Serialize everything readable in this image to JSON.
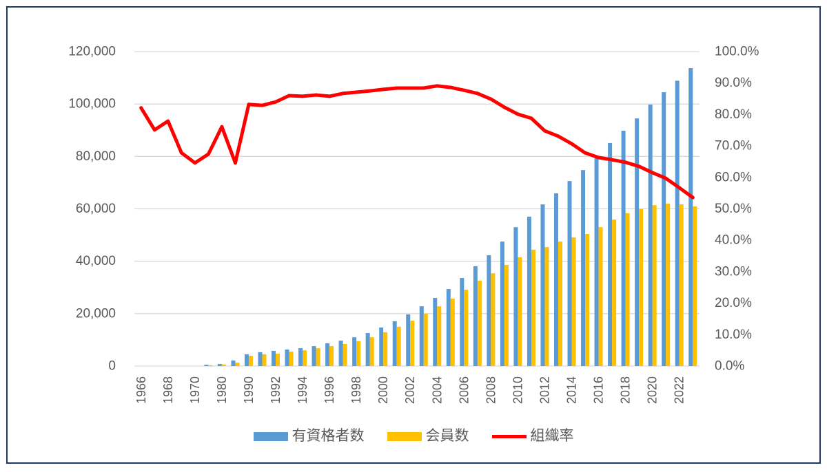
{
  "chart_data": {
    "type": "bar",
    "categories": [
      "1966",
      "",
      "1968",
      "",
      "1970",
      "",
      "1980",
      "",
      "1990",
      "",
      "1992",
      "",
      "1994",
      "",
      "1996",
      "",
      "1998",
      "",
      "2000",
      "",
      "2002",
      "",
      "2004",
      "",
      "2006",
      "",
      "2008",
      "",
      "2010",
      "",
      "2012",
      "",
      "2014",
      "",
      "2016",
      "",
      "2018",
      "",
      "2020",
      "",
      "2022",
      ""
    ],
    "series": [
      {
        "name": "有資格者数",
        "type": "bar",
        "axis": "left",
        "color": "#5B9BD5",
        "values": [
          0,
          0,
          0,
          0,
          0,
          500,
          800,
          2100,
          4500,
          5300,
          5800,
          6300,
          6800,
          7600,
          8700,
          9700,
          11000,
          12600,
          14700,
          17100,
          19700,
          22800,
          26000,
          29400,
          33600,
          38100,
          42300,
          47500,
          53000,
          57000,
          61700,
          65900,
          70600,
          74800,
          79800,
          85100,
          89800,
          94500,
          99800,
          104500,
          108900,
          113700
        ]
      },
      {
        "name": "会員数",
        "type": "bar",
        "axis": "left",
        "color": "#FFC000",
        "values": [
          0,
          0,
          0,
          0,
          0,
          300,
          600,
          1300,
          3900,
          4500,
          4700,
          5500,
          6000,
          6800,
          7600,
          8400,
          9500,
          11000,
          12900,
          15000,
          17300,
          20000,
          22800,
          25700,
          29100,
          32600,
          35400,
          38600,
          41500,
          44400,
          45400,
          47500,
          49100,
          50400,
          53000,
          55900,
          58300,
          59900,
          61400,
          62000,
          61700,
          60900
        ]
      },
      {
        "name": "組織率",
        "type": "line",
        "axis": "right",
        "color": "#FF0000",
        "values": [
          82.1,
          75.1,
          77.9,
          67.8,
          64.6,
          67.4,
          76.1,
          64.6,
          83.2,
          82.9,
          84.0,
          86.0,
          85.8,
          86.2,
          85.8,
          86.7,
          87.1,
          87.5,
          88.0,
          88.4,
          88.4,
          88.4,
          89.1,
          88.6,
          87.7,
          86.7,
          84.9,
          82.3,
          80.1,
          78.8,
          74.8,
          73.1,
          70.7,
          67.8,
          66.3,
          65.6,
          64.8,
          63.5,
          61.5,
          59.7,
          56.7,
          53.6
        ]
      }
    ],
    "ylim": [
      0,
      120000
    ],
    "y2lim": [
      0,
      100
    ],
    "y_ticks": [
      "0",
      "20,000",
      "40,000",
      "60,000",
      "80,000",
      "100,000",
      "120,000"
    ],
    "y2_ticks": [
      "0.0%",
      "10.0%",
      "20.0%",
      "30.0%",
      "40.0%",
      "50.0%",
      "60.0%",
      "70.0%",
      "80.0%",
      "90.0%",
      "100.0%"
    ],
    "grid": true,
    "legend": "bottom"
  }
}
